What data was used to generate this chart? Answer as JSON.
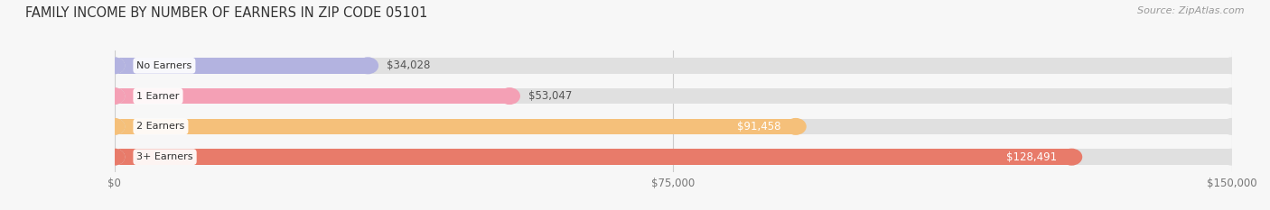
{
  "title": "FAMILY INCOME BY NUMBER OF EARNERS IN ZIP CODE 05101",
  "source": "Source: ZipAtlas.com",
  "categories": [
    "No Earners",
    "1 Earner",
    "2 Earners",
    "3+ Earners"
  ],
  "values": [
    34028,
    53047,
    91458,
    128491
  ],
  "labels": [
    "$34,028",
    "$53,047",
    "$91,458",
    "$128,491"
  ],
  "bar_colors": [
    "#b3b3e0",
    "#f4a0b5",
    "#f5c07a",
    "#e87b6a"
  ],
  "bar_bg_color": "#e0e0e0",
  "xlim": [
    0,
    150000
  ],
  "xticks": [
    0,
    75000,
    150000
  ],
  "xticklabels": [
    "$0",
    "$75,000",
    "$150,000"
  ],
  "title_fontsize": 10.5,
  "source_fontsize": 8,
  "background_color": "#f7f7f7",
  "label_threshold": 75000
}
